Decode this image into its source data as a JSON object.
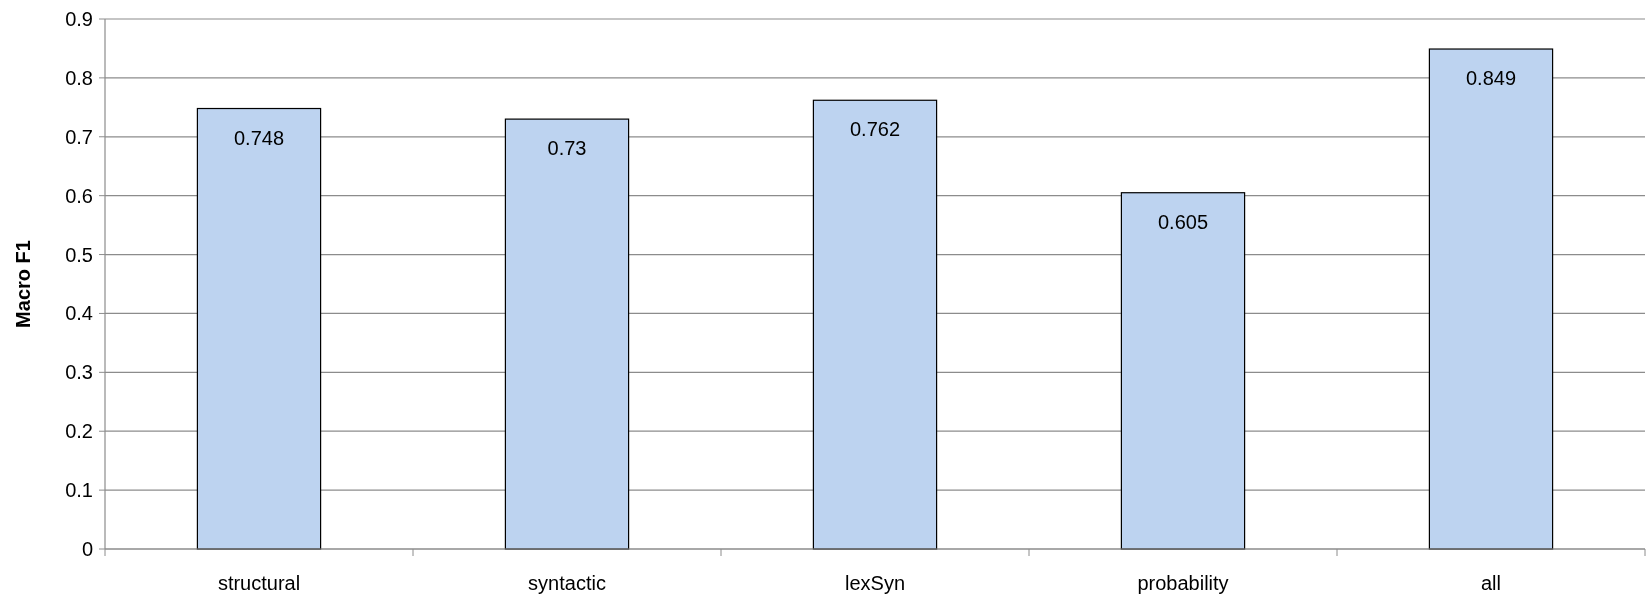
{
  "chart_data": {
    "type": "bar",
    "ylabel": "Macro F1",
    "categories": [
      "structural",
      "syntactic",
      "lexSyn",
      "probability",
      "all"
    ],
    "values": [
      0.748,
      0.73,
      0.762,
      0.605,
      0.849
    ],
    "color": "#bdd3f0",
    "ylim": [
      0,
      0.9
    ],
    "yticks": [
      0,
      0.1,
      0.2,
      0.3,
      0.4,
      0.5,
      0.6,
      0.7,
      0.8,
      0.9
    ],
    "grid": "y",
    "data_labels": true
  }
}
